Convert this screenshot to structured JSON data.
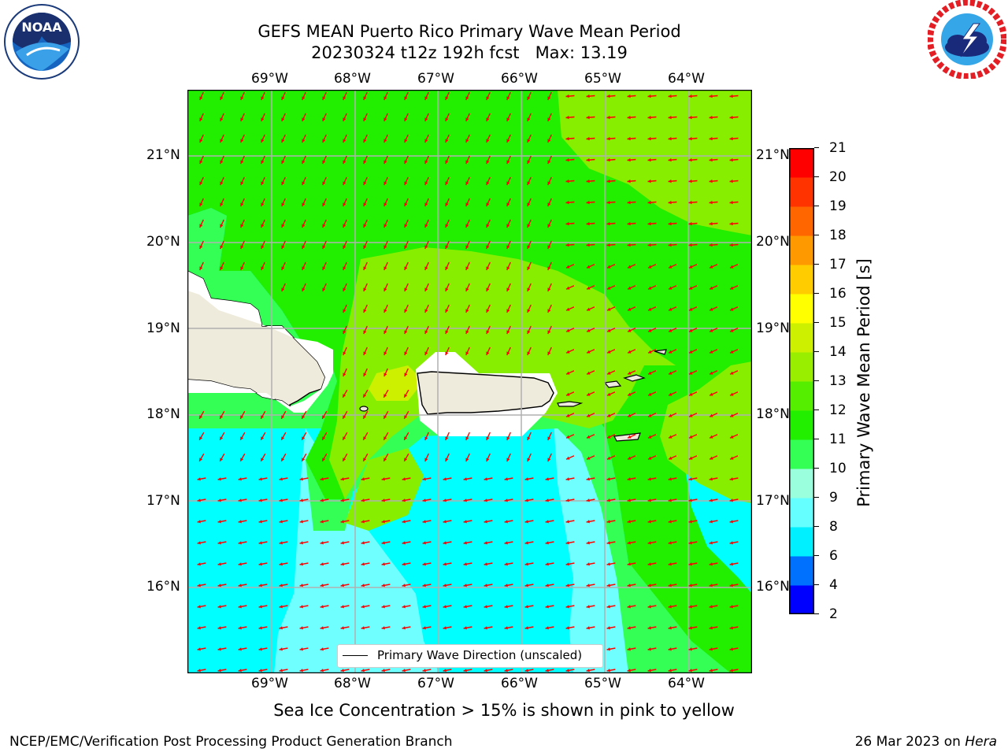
{
  "title": {
    "line1": "GEFS MEAN Puerto Rico Primary Wave Mean Period",
    "line2": "20230324 t12z 192h fcst   Max: 13.19"
  },
  "logos": {
    "left_text": "NOAA",
    "left_ring_text": "NATIONAL OCEANIC AND ATMOSPHERIC ADMINISTRATION · U.S. DEPARTMENT OF COMMERCE",
    "right_ring_text": "NATIONAL WEATHER SERVICE"
  },
  "map": {
    "lon_labels": [
      "69°W",
      "68°W",
      "67°W",
      "66°W",
      "65°W",
      "64°W"
    ],
    "lat_labels": [
      "21°N",
      "20°N",
      "19°N",
      "18°N",
      "17°N",
      "16°N"
    ],
    "legend_label": "Primary Wave Direction (unscaled)",
    "land_color": "#efebdc",
    "arrow_color": "#ff0000"
  },
  "colorbar": {
    "label": "Primary Wave Mean Period [s]",
    "ticks": [
      "21",
      "20",
      "19",
      "18",
      "17",
      "16",
      "15",
      "14",
      "13",
      "12",
      "11",
      "10",
      "9",
      "8",
      "6",
      "4",
      "2"
    ],
    "levels": [
      2,
      4,
      6,
      8,
      9,
      10,
      11,
      12,
      13,
      14,
      15,
      16,
      17,
      18,
      19,
      20,
      21
    ],
    "colors": [
      "#0000ff",
      "#0070ff",
      "#00f0ff",
      "#66ffff",
      "#99ffdd",
      "#33ff55",
      "#22ee00",
      "#55ee00",
      "#99ee00",
      "#ccf000",
      "#ffff00",
      "#ffcc00",
      "#ff9900",
      "#ff6600",
      "#ff3300",
      "#ff0000"
    ]
  },
  "footer": {
    "note": "Sea Ice Concentration > 15% is shown in pink to yellow",
    "branch": "NCEP/EMC/Verification Post Processing Product Generation Branch",
    "date": "26 Mar 2023 on ",
    "machine": "Hera"
  }
}
